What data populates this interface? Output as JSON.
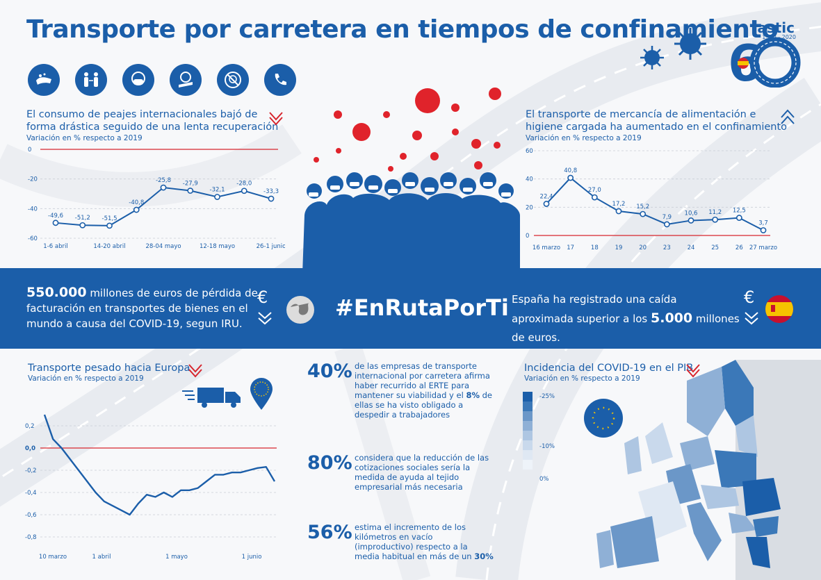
{
  "title": "Transporte por carretera en tiempos de confinamiento",
  "logo": {
    "word": "astic",
    "years": "1960 - 2020",
    "big": "60",
    "sub": "AÑOS"
  },
  "icons": [
    "handwashing-icon",
    "distance-icon",
    "mask-icon",
    "cough-elbow-icon",
    "no-touch-face-icon",
    "phone-icon"
  ],
  "colors": {
    "primary": "#1b5ea9",
    "accent": "#d7262e",
    "virus": "#e0232b"
  },
  "chart1": {
    "title_line1": "El consumo de peajes internacionales bajó de",
    "title_line2": "forma drástica seguido de una lenta recuperación",
    "subtitle": "Variación en % respecto a 2019"
  },
  "chart2": {
    "title_line1": "El transporte de mercancía de alimentación e",
    "title_line2": "higiene cargada ha aumentado en el confinamiento",
    "subtitle": "Variación en % respecto a 2019"
  },
  "chart3": {
    "title": "Transporte pesado hacia Europa",
    "subtitle": "Variación en % respecto a 2019"
  },
  "chart4": {
    "title": "Incidencia del COVID-19 en el PIB",
    "subtitle": "Variación en % respecto a 2019",
    "legend_labels": [
      "-25%",
      "-10%",
      "0%"
    ]
  },
  "band": {
    "left_bold": "550.000",
    "left_text": " millones de euros de pérdida de facturación en transportes de bienes en el mundo a causa del COVID-19, segun IRU.",
    "hashtag": "#EnRutaPorTi",
    "right_text_1": "España ha registrado una caída aproximada superior a los ",
    "right_bold": "5.000",
    "right_text_2": " millones de euros.",
    "euro_symbol": "€"
  },
  "stats": [
    {
      "pct": "40%",
      "text_1": "de las empresas de transporte internacional por carretera afirma haber recurrido al ERTE para mantener su viabilidad y el ",
      "bold": "8%",
      "text_2": " de ellas se ha visto obligado a despedir a trabajadores"
    },
    {
      "pct": "80%",
      "text_1": "considera que la reducción de las cotizaciones sociales sería la medida de ayuda al tejido empresarial más necesaria",
      "bold": "",
      "text_2": ""
    },
    {
      "pct": "56%",
      "text_1": "estima el incremento de los kilómetros en vacío (improductivo) respecto a la media habitual en más de un ",
      "bold": "30%",
      "text_2": ""
    }
  ],
  "chart_data": [
    {
      "type": "line",
      "title": "El consumo de peajes internacionales bajó de forma drástica seguido de una lenta recuperación",
      "subtitle": "Variación en % respecto a 2019",
      "ylim": [
        -60,
        0
      ],
      "yticks": [
        "0",
        "-20",
        "-40",
        "-60"
      ],
      "xtick_labels": [
        "1-6 abril",
        "14-20 abril",
        "28-04 mayo",
        "12-18 mayo",
        "26-1 junio"
      ],
      "values": [
        -49.6,
        -51.2,
        -51.5,
        -40.8,
        -25.8,
        -27.9,
        -32.1,
        -28.0,
        -33.3
      ],
      "value_labels": [
        "-49,6",
        "-51,2",
        "-51,5",
        "-40,8",
        "-25,8",
        "-27,9",
        "-32,1",
        "-28,0",
        "-33,3"
      ],
      "grid": true
    },
    {
      "type": "line",
      "title": "El transporte de mercancía de alimentación e higiene cargada ha aumentado en el confinamiento",
      "subtitle": "Variación en % respecto a 2019",
      "ylim": [
        0,
        60
      ],
      "yticks": [
        "60",
        "40",
        "20",
        "0"
      ],
      "categories": [
        "16 marzo",
        "17",
        "18",
        "19",
        "20",
        "23",
        "24",
        "25",
        "26",
        "27 marzo"
      ],
      "values": [
        22.4,
        40.8,
        27.0,
        17.2,
        15.2,
        7.9,
        10.6,
        11.2,
        12.5,
        3.7
      ],
      "value_labels": [
        "22,4",
        "40,8",
        "27,0",
        "17,2",
        "15,2",
        "7,9",
        "10,6",
        "11,2",
        "12,5",
        "3,7"
      ],
      "grid": true
    },
    {
      "type": "line",
      "title": "Transporte pesado hacia Europa",
      "subtitle": "Variación en % respecto a 2019",
      "ylim": [
        -0.85,
        0.35
      ],
      "yticks": [
        "0,2",
        "0,0",
        "-0,2",
        "-0,4",
        "-0,6",
        "-0,8"
      ],
      "xtick_labels": [
        "10 marzo",
        "1 abril",
        "1 mayo",
        "1 junio"
      ],
      "values": [
        0.3,
        0.08,
        0.0,
        -0.1,
        -0.2,
        -0.3,
        -0.4,
        -0.48,
        -0.52,
        -0.56,
        -0.6,
        -0.5,
        -0.42,
        -0.44,
        -0.4,
        -0.44,
        -0.38,
        -0.38,
        -0.36,
        -0.3,
        -0.24,
        -0.24,
        -0.22,
        -0.22,
        -0.2,
        -0.18,
        -0.17,
        -0.3
      ],
      "grid": true
    }
  ]
}
